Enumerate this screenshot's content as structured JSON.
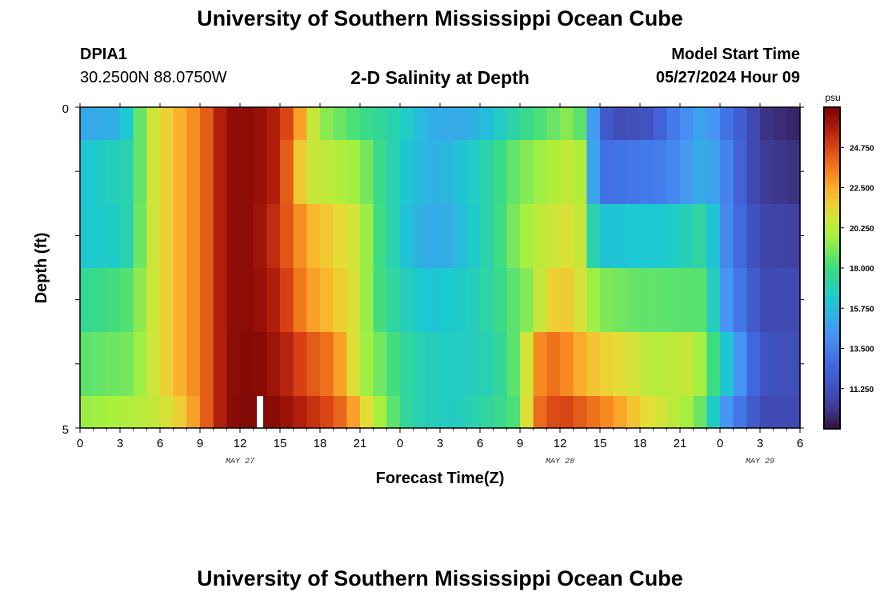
{
  "header": {
    "title": "University of Southern Mississippi Ocean Cube",
    "station_id": "DPIA1",
    "station_location": "30.2500N  88.0750W",
    "plot_title": "2-D Salinity at Depth",
    "start_label": "Model Start Time",
    "start_value": "05/27/2024 Hour 09"
  },
  "footer": {
    "title": "University of Southern Mississippi Ocean Cube"
  },
  "chart_data": {
    "type": "heatmap",
    "xlabel": "Forecast Time(Z)",
    "ylabel": "Depth (ft)",
    "x_tick_labels": [
      "0",
      "3",
      "6",
      "9",
      "12",
      "15",
      "18",
      "21",
      "0",
      "3",
      "6",
      "9",
      "12",
      "15",
      "18",
      "21",
      "0",
      "3",
      "6"
    ],
    "date_labels": [
      {
        "label": "MAY 27",
        "tick_index": 4
      },
      {
        "label": "MAY 28",
        "tick_index": 12
      },
      {
        "label": "MAY 29",
        "tick_index": 17
      }
    ],
    "y_tick_labels": [
      "0",
      "5"
    ],
    "colorbar": {
      "unit": "psu",
      "ticks": [
        "24.750",
        "22.500",
        "20.250",
        "18.000",
        "15.750",
        "13.500",
        "11.250"
      ],
      "range": [
        9.0,
        27.0
      ]
    },
    "time_start_hour": 0,
    "time_step_hours": 1,
    "rows": [
      {
        "depth_band": "0",
        "segments": [
          [
            0,
            15.0
          ],
          [
            3,
            15.3
          ],
          [
            4,
            17.2
          ],
          [
            5,
            20.2
          ],
          [
            7,
            22.0
          ],
          [
            9,
            23.5
          ],
          [
            10,
            25.0
          ],
          [
            11,
            26.5
          ],
          [
            13,
            26.6
          ],
          [
            15,
            25.5
          ],
          [
            16,
            24.0
          ],
          [
            17,
            21.5
          ],
          [
            18,
            19.5
          ],
          [
            21,
            18.0
          ],
          [
            23,
            17.3
          ],
          [
            25,
            16.2
          ],
          [
            26,
            15.3
          ],
          [
            28,
            15.0
          ],
          [
            30,
            15.5
          ],
          [
            31,
            16.2
          ],
          [
            33,
            17.5
          ],
          [
            35,
            18.5
          ],
          [
            37,
            19.5
          ],
          [
            38,
            17.5
          ],
          [
            38.6,
            14.0
          ],
          [
            39,
            12.5
          ],
          [
            40,
            11.0
          ],
          [
            43,
            11.5
          ],
          [
            44,
            13.0
          ],
          [
            47,
            15.2
          ],
          [
            48,
            13.5
          ],
          [
            50,
            11.5
          ],
          [
            51,
            10.0
          ],
          [
            54,
            9.5
          ]
        ]
      },
      {
        "depth_band": "1",
        "segments": [
          [
            0,
            16.0
          ],
          [
            4,
            17.2
          ],
          [
            5,
            20.2
          ],
          [
            7,
            22.0
          ],
          [
            9,
            23.5
          ],
          [
            10,
            25.0
          ],
          [
            11,
            26.5
          ],
          [
            13,
            26.6
          ],
          [
            15,
            25.5
          ],
          [
            16,
            23.0
          ],
          [
            17,
            20.5
          ],
          [
            19,
            20.2
          ],
          [
            21,
            19.5
          ],
          [
            23,
            17.3
          ],
          [
            25,
            15.8
          ],
          [
            27,
            15.3
          ],
          [
            29,
            16.2
          ],
          [
            31,
            17.5
          ],
          [
            33,
            19.0
          ],
          [
            35,
            19.8
          ],
          [
            37,
            20.5
          ],
          [
            38,
            19.5
          ],
          [
            38.6,
            14.0
          ],
          [
            39,
            12.8
          ],
          [
            44,
            13.5
          ],
          [
            47,
            15.5
          ],
          [
            49,
            13.0
          ],
          [
            50,
            11.5
          ],
          [
            51,
            10.2
          ],
          [
            54,
            9.8
          ]
        ]
      },
      {
        "depth_band": "2",
        "segments": [
          [
            0,
            16.2
          ],
          [
            3,
            16.5
          ],
          [
            4,
            17.5
          ],
          [
            5,
            20.2
          ],
          [
            7,
            22.0
          ],
          [
            9,
            23.5
          ],
          [
            10,
            25.0
          ],
          [
            11,
            26.5
          ],
          [
            13,
            26.6
          ],
          [
            15,
            25.0
          ],
          [
            17,
            22.5
          ],
          [
            19,
            21.5
          ],
          [
            21,
            20.5
          ],
          [
            22,
            18.5
          ],
          [
            24,
            16.5
          ],
          [
            25,
            15.5
          ],
          [
            27,
            15.0
          ],
          [
            29,
            16.0
          ],
          [
            31,
            17.5
          ],
          [
            33,
            19.5
          ],
          [
            35,
            20.5
          ],
          [
            37,
            21.0
          ],
          [
            38,
            20.0
          ],
          [
            38.6,
            16.5
          ],
          [
            39,
            16.0
          ],
          [
            44,
            16.3
          ],
          [
            46,
            17.0
          ],
          [
            47,
            17.6
          ],
          [
            48,
            14.5
          ],
          [
            50,
            12.0
          ],
          [
            51,
            10.6
          ],
          [
            54,
            10.3
          ]
        ]
      },
      {
        "depth_band": "3",
        "segments": [
          [
            0,
            17.5
          ],
          [
            4,
            18.5
          ],
          [
            5,
            20.2
          ],
          [
            7,
            22.0
          ],
          [
            9,
            23.5
          ],
          [
            10,
            25.0
          ],
          [
            11,
            26.5
          ],
          [
            13,
            26.6
          ],
          [
            15,
            25.5
          ],
          [
            17,
            23.0
          ],
          [
            19,
            22.0
          ],
          [
            21,
            20.5
          ],
          [
            22,
            18.5
          ],
          [
            24,
            17.0
          ],
          [
            26,
            16.0
          ],
          [
            29,
            16.5
          ],
          [
            31,
            17.5
          ],
          [
            34,
            19.5
          ],
          [
            35,
            21.5
          ],
          [
            37,
            21.8
          ],
          [
            38,
            20.0
          ],
          [
            39,
            19.2
          ],
          [
            42,
            18.6
          ],
          [
            45,
            18.5
          ],
          [
            47,
            18.4
          ],
          [
            48,
            15.0
          ],
          [
            50,
            12.5
          ],
          [
            51,
            11.0
          ],
          [
            54,
            10.8
          ]
        ]
      },
      {
        "depth_band": "4",
        "segments": [
          [
            0,
            18.5
          ],
          [
            4,
            19.0
          ],
          [
            5,
            20.2
          ],
          [
            7,
            22.0
          ],
          [
            9,
            23.5
          ],
          [
            10,
            25.0
          ],
          [
            11,
            26.5
          ],
          [
            13,
            26.8
          ],
          [
            15,
            26.0
          ],
          [
            17,
            24.5
          ],
          [
            19,
            23.5
          ],
          [
            20,
            22.0
          ],
          [
            21,
            20.0
          ],
          [
            23,
            18.5
          ],
          [
            25,
            17.0
          ],
          [
            28,
            16.5
          ],
          [
            31,
            17.0
          ],
          [
            33,
            19.0
          ],
          [
            34,
            22.5
          ],
          [
            35,
            24.0
          ],
          [
            37,
            23.0
          ],
          [
            38,
            22.0
          ],
          [
            41,
            21.0
          ],
          [
            43,
            20.0
          ],
          [
            46,
            20.5
          ],
          [
            47,
            19.0
          ],
          [
            48,
            17.0
          ],
          [
            50,
            13.5
          ],
          [
            51,
            11.5
          ],
          [
            54,
            11.0
          ]
        ]
      },
      {
        "depth_band": "5",
        "segments": [
          [
            0,
            19.5
          ],
          [
            4,
            20.0
          ],
          [
            6,
            20.5
          ],
          [
            8,
            22.0
          ],
          [
            9,
            23.5
          ],
          [
            10,
            25.0
          ],
          [
            11,
            26.5
          ],
          [
            13,
            26.9
          ],
          [
            15,
            26.5
          ],
          [
            17,
            25.5
          ],
          [
            19,
            24.5
          ],
          [
            20,
            23.5
          ],
          [
            21,
            22.0
          ],
          [
            23,
            19.0
          ],
          [
            25,
            17.0
          ],
          [
            28,
            16.5
          ],
          [
            31,
            17.5
          ],
          [
            33,
            18.5
          ],
          [
            34,
            23.5
          ],
          [
            36,
            25.0
          ],
          [
            38,
            24.0
          ],
          [
            40,
            23.0
          ],
          [
            42,
            21.5
          ],
          [
            44,
            20.5
          ],
          [
            46,
            19.5
          ],
          [
            47,
            18.0
          ],
          [
            48,
            15.0
          ],
          [
            50,
            12.5
          ],
          [
            51,
            11.0
          ],
          [
            54,
            10.8
          ]
        ]
      }
    ],
    "missing_cell": {
      "hour": 13.5,
      "depth_band": "5"
    }
  }
}
